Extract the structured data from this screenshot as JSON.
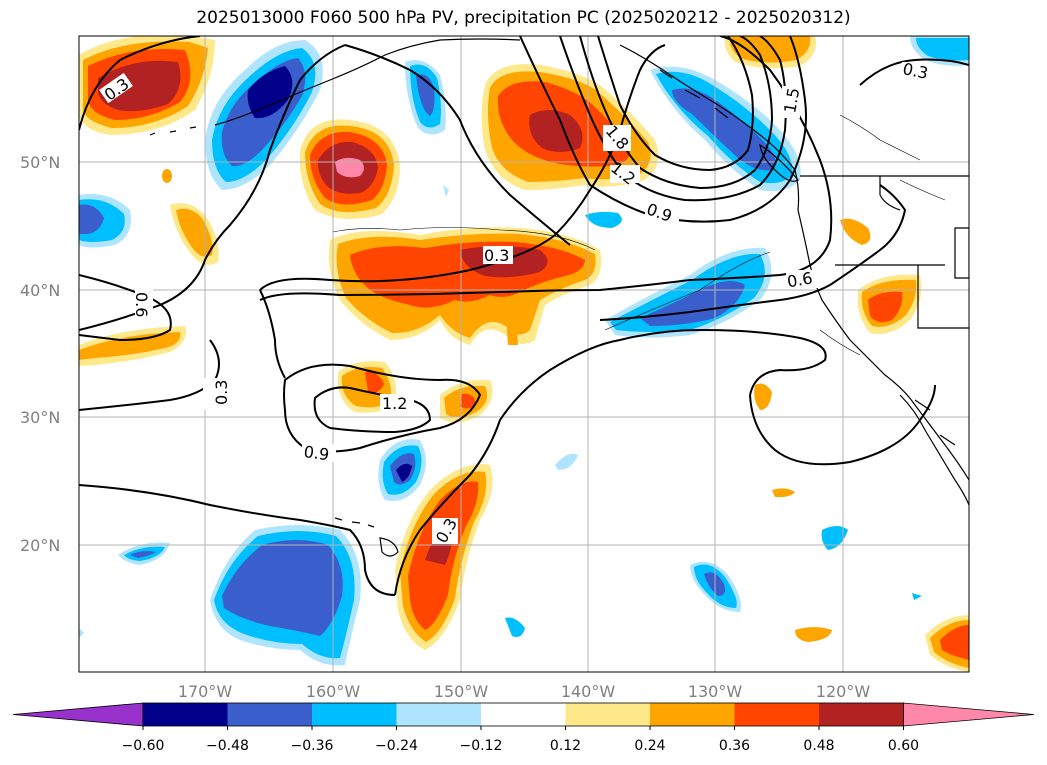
{
  "title": "2025013000 F060 500 hPa PV, precipitation PC (2025020212 - 2025020312)",
  "map": {
    "lon_labels": [
      "170°W",
      "160°W",
      "150°W",
      "140°W",
      "130°W",
      "120°W"
    ],
    "lat_labels": [
      "50°N",
      "40°N",
      "30°N",
      "20°N"
    ],
    "contour_labels": [
      "0.3",
      "0.3",
      "0.3",
      "0.3",
      "0.3",
      "0.6",
      "0.6",
      "0.9",
      "0.9",
      "1.2",
      "1.2",
      "1.5",
      "1.8"
    ]
  },
  "colorbar": {
    "colors": [
      "#9932cc",
      "#00008b",
      "#3a5fcd",
      "#00bfff",
      "#afe4ff",
      "#ffffff",
      "#ffe88a",
      "#ffa500",
      "#ff4500",
      "#b22222",
      "#ff88aa"
    ],
    "tick_labels": [
      "−0.60",
      "−0.48",
      "−0.36",
      "−0.24",
      "−0.12",
      "0.12",
      "0.24",
      "0.36",
      "0.48",
      "0.60"
    ]
  }
}
